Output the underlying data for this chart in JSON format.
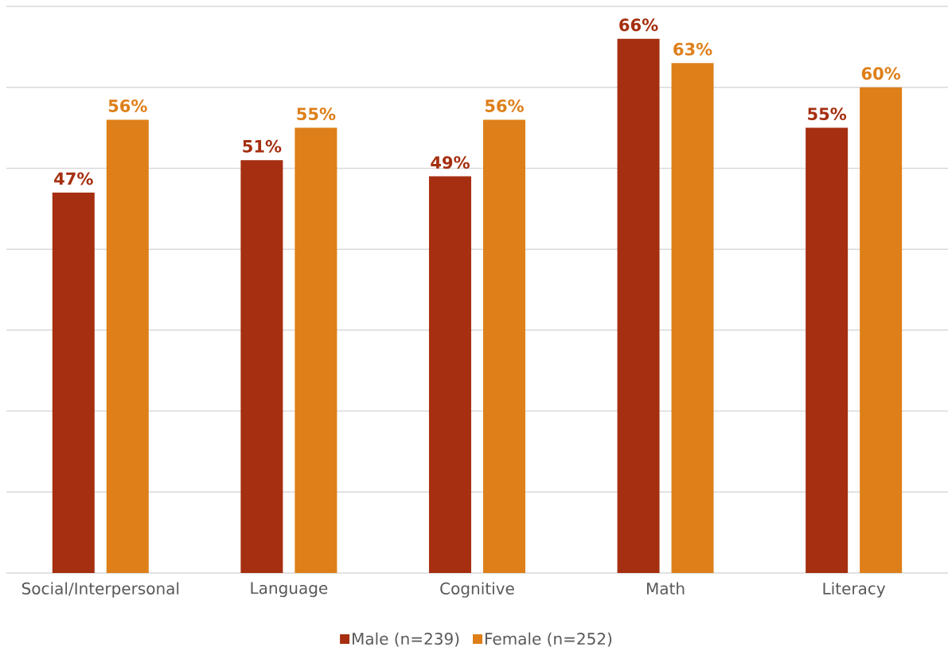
{
  "chart_data": {
    "type": "bar",
    "categories": [
      "Social/Interpersonal",
      "Language",
      "Cognitive",
      "Math",
      "Literacy"
    ],
    "series": [
      {
        "name": "Male (n=239)",
        "color": "#a52f10",
        "values": [
          47,
          51,
          49,
          66,
          55
        ],
        "value_labels": [
          "47%",
          "51%",
          "49%",
          "66%",
          "55%"
        ]
      },
      {
        "name": "Female (n=252)",
        "color": "#de7f19",
        "values": [
          56,
          55,
          56,
          63,
          60
        ],
        "value_labels": [
          "56%",
          "55%",
          "56%",
          "63%",
          "60%"
        ]
      }
    ],
    "ylim": [
      0,
      70
    ],
    "yticks": [
      {
        "value": 0,
        "label": null
      },
      {
        "value": 10,
        "label": null
      },
      {
        "value": 20,
        "label": null
      },
      {
        "value": 30,
        "label": null
      },
      {
        "value": 40,
        "label": null
      },
      {
        "value": 50,
        "label": null
      },
      {
        "value": 60,
        "label": null
      },
      {
        "value": 70,
        "label": null
      }
    ],
    "grid": "y",
    "legend": "bottom",
    "tick_labels": "x"
  }
}
